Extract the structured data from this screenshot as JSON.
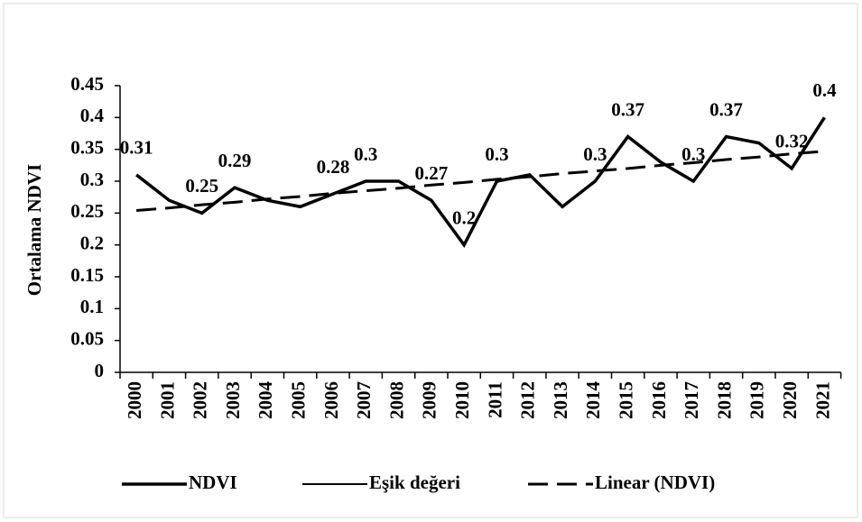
{
  "chart_data": {
    "type": "line",
    "y_label": "Ortalama NDVI",
    "categories": [
      "2000",
      "2001",
      "2002",
      "2003",
      "2004",
      "2005",
      "2006",
      "2007",
      "2008",
      "2009",
      "2010",
      "2011",
      "2012",
      "2013",
      "2014",
      "2015",
      "2016",
      "2017",
      "2018",
      "2019",
      "2020",
      "2021"
    ],
    "series": [
      {
        "name": "NDVI",
        "color": "#000000",
        "style": "solid",
        "width": 3.5,
        "values": [
          0.31,
          0.27,
          0.25,
          0.29,
          0.27,
          0.26,
          0.28,
          0.3,
          0.3,
          0.27,
          0.2,
          0.3,
          0.31,
          0.26,
          0.3,
          0.37,
          0.33,
          0.3,
          0.37,
          0.36,
          0.32,
          0.4
        ],
        "value_labels": [
          "0.31",
          null,
          "0.25",
          "0.29",
          null,
          null,
          "0.28",
          "0.3",
          null,
          "0.27",
          "0.2",
          "0.3",
          null,
          null,
          "0.3",
          "0.37",
          null,
          "0.3",
          "0.37",
          null,
          "0.32",
          "0.4"
        ]
      },
      {
        "name": "Eşik değeri",
        "color": "#000000",
        "style": "solid",
        "width": 2,
        "values": [
          null,
          null,
          null,
          null,
          null,
          null,
          null,
          null,
          null,
          null,
          null,
          null,
          null,
          null,
          null,
          null,
          null,
          null,
          null,
          null,
          null,
          null
        ]
      },
      {
        "name": "Linear (NDVI)",
        "color": "#000000",
        "style": "dashed",
        "width": 3,
        "values": [
          0.254,
          0.258,
          0.263,
          0.267,
          0.272,
          0.276,
          0.281,
          0.285,
          0.289,
          0.294,
          0.298,
          0.303,
          0.307,
          0.312,
          0.316,
          0.32,
          0.325,
          0.329,
          0.334,
          0.338,
          0.343,
          0.347
        ]
      }
    ],
    "ylim": [
      0,
      0.45
    ],
    "yticks": [
      0,
      0.05,
      0.1,
      0.15,
      0.2,
      0.25,
      0.3,
      0.35,
      0.4,
      0.45
    ],
    "grid": false,
    "legend": "bottom"
  }
}
